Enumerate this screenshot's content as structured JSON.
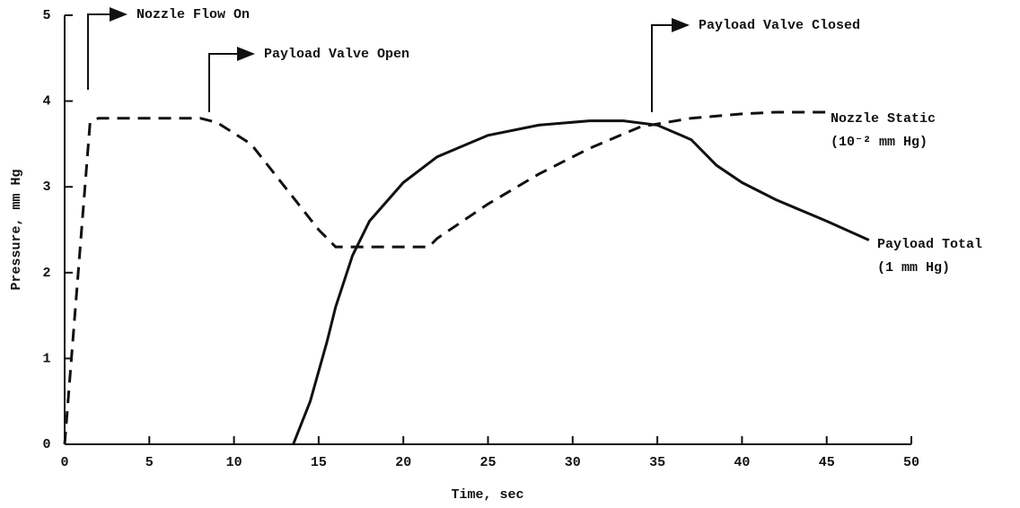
{
  "chart_data": {
    "type": "line",
    "x_label": "Time, sec",
    "y_label": "Pressure, mm Hg",
    "xlim": [
      0,
      50
    ],
    "xticks": [
      0,
      5,
      10,
      15,
      20,
      25,
      30,
      35,
      40,
      45,
      50
    ],
    "ylim": [
      0,
      5
    ],
    "yticks": [
      0,
      1,
      2,
      3,
      4,
      5
    ],
    "grid": false,
    "series": [
      {
        "name": "Nozzle Static",
        "unit_label": "(10⁻² mm Hg)",
        "color": "#111111",
        "dashed": true,
        "x": [
          0,
          1.5,
          2,
          8,
          9,
          11,
          13,
          15,
          16,
          21.5,
          22,
          25,
          28,
          31,
          34,
          37,
          40,
          42,
          45
        ],
        "values": [
          0,
          3.75,
          3.8,
          3.8,
          3.75,
          3.5,
          3.0,
          2.5,
          2.3,
          2.3,
          2.4,
          2.8,
          3.15,
          3.45,
          3.7,
          3.8,
          3.85,
          3.87,
          3.87
        ]
      },
      {
        "name": "Payload Total",
        "unit_label": "(1 mm Hg)",
        "color": "#111111",
        "dashed": false,
        "x": [
          13.5,
          14.5,
          15.5,
          16,
          17,
          18,
          20,
          22,
          25,
          28,
          31,
          33,
          35,
          37,
          38.5,
          40,
          42,
          45,
          47.5
        ],
        "values": [
          0,
          0.5,
          1.2,
          1.6,
          2.2,
          2.6,
          3.05,
          3.35,
          3.6,
          3.72,
          3.77,
          3.77,
          3.72,
          3.55,
          3.25,
          3.05,
          2.85,
          2.6,
          2.38
        ]
      }
    ],
    "annotations": [
      "Nozzle Flow On",
      "Payload Valve Open",
      "Payload Valve Closed"
    ]
  }
}
